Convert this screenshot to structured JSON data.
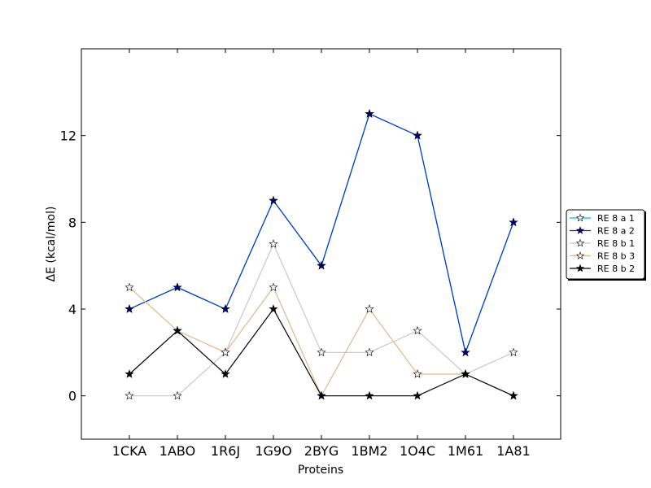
{
  "chart_data": {
    "type": "line",
    "title": "",
    "xlabel": "Proteins",
    "ylabel": "ΔE (kcal/mol)",
    "categories": [
      "1CKA",
      "1ABO",
      "1R6J",
      "1G9O",
      "2BYG",
      "1BM2",
      "1O4C",
      "1M61",
      "1A81"
    ],
    "ylim": [
      -2,
      16
    ],
    "yticks": [
      0,
      4,
      8,
      12
    ],
    "grid": false,
    "legend_position": "right-outside",
    "series": [
      {
        "name": "RE 8 a 1",
        "color": "#00bfbf",
        "marker_fill": "#ffffff",
        "values": [
          4,
          5,
          4,
          9,
          6,
          13,
          12,
          2,
          8
        ]
      },
      {
        "name": "RE 8 a 2",
        "color": "#0033cc",
        "marker_fill": "#000080",
        "values": [
          4,
          5,
          4,
          9,
          6,
          13,
          12,
          2,
          8
        ]
      },
      {
        "name": "RE 8 b 1",
        "color": "#c8c8c8",
        "marker_fill": "#ffffff",
        "values": [
          0,
          0,
          2,
          7,
          2,
          2,
          3,
          1,
          2
        ]
      },
      {
        "name": "RE 8 b 3",
        "color": "#deb887",
        "marker_fill": "#ffffff",
        "values": [
          5,
          3,
          2,
          5,
          0,
          4,
          1,
          1,
          0
        ]
      },
      {
        "name": "RE 8 b 2",
        "color": "#000000",
        "marker_fill": "#000000",
        "values": [
          1,
          3,
          1,
          4,
          0,
          0,
          0,
          1,
          0
        ]
      }
    ]
  }
}
